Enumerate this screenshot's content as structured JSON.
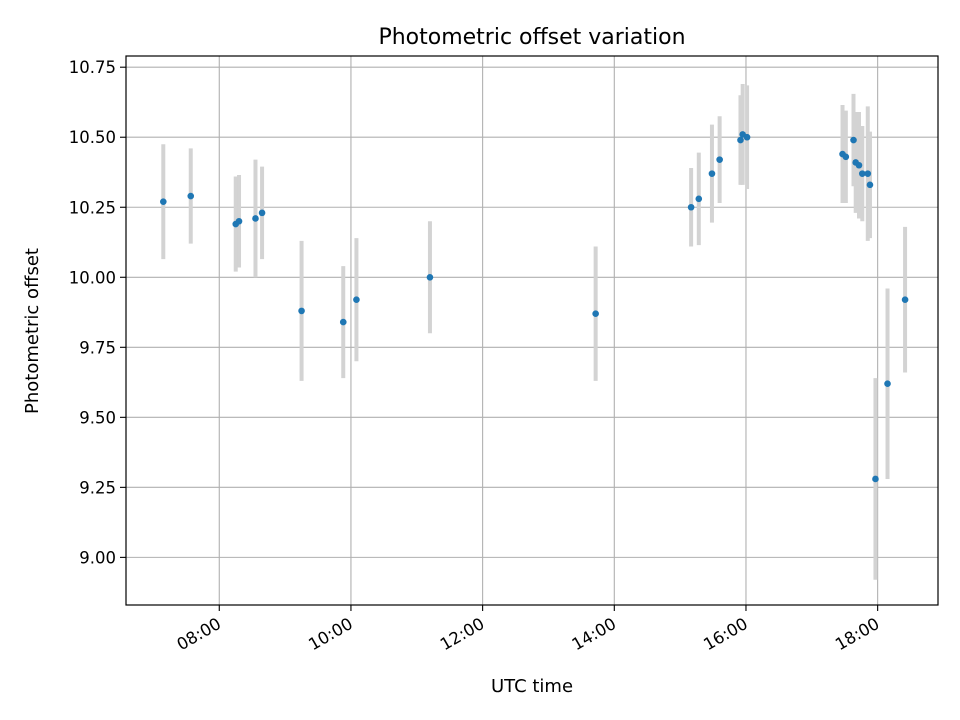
{
  "chart_data": {
    "type": "scatter",
    "title": "Photometric offset variation",
    "xlabel": "UTC time",
    "ylabel": "Photometric offset",
    "x_unit": "hours UTC",
    "xlim": [
      "06:35",
      "18:55"
    ],
    "ylim": [
      8.83,
      10.79
    ],
    "x_ticks": [
      "08:00",
      "10:00",
      "12:00",
      "14:00",
      "16:00",
      "18:00"
    ],
    "y_ticks": [
      "9.00",
      "9.25",
      "9.50",
      "9.75",
      "10.00",
      "10.25",
      "10.50",
      "10.75"
    ],
    "grid": true,
    "colors": {
      "point": "#1f77b4",
      "error_bar": "#d3d3d3",
      "grid": "#b0b0b0"
    },
    "points": [
      {
        "x": "07:09",
        "y": 10.27,
        "err": 0.205
      },
      {
        "x": "07:34",
        "y": 10.29,
        "err": 0.17
      },
      {
        "x": "08:15",
        "y": 10.19,
        "err": 0.17
      },
      {
        "x": "08:18",
        "y": 10.2,
        "err": 0.165
      },
      {
        "x": "08:33",
        "y": 10.21,
        "err": 0.21
      },
      {
        "x": "08:39",
        "y": 10.23,
        "err": 0.165
      },
      {
        "x": "09:15",
        "y": 9.88,
        "err": 0.25
      },
      {
        "x": "09:53",
        "y": 9.84,
        "err": 0.2
      },
      {
        "x": "10:05",
        "y": 9.92,
        "err": 0.22
      },
      {
        "x": "11:12",
        "y": 10.0,
        "err": 0.2
      },
      {
        "x": "13:43",
        "y": 9.87,
        "err": 0.24
      },
      {
        "x": "15:10",
        "y": 10.25,
        "err": 0.14
      },
      {
        "x": "15:17",
        "y": 10.28,
        "err": 0.165
      },
      {
        "x": "15:29",
        "y": 10.37,
        "err": 0.175
      },
      {
        "x": "15:36",
        "y": 10.42,
        "err": 0.155
      },
      {
        "x": "15:55",
        "y": 10.49,
        "err": 0.16
      },
      {
        "x": "15:57",
        "y": 10.51,
        "err": 0.18
      },
      {
        "x": "16:01",
        "y": 10.5,
        "err": 0.185
      },
      {
        "x": "17:28",
        "y": 10.44,
        "err": 0.175
      },
      {
        "x": "17:31",
        "y": 10.43,
        "err": 0.165
      },
      {
        "x": "17:38",
        "y": 10.49,
        "err": 0.165
      },
      {
        "x": "17:40",
        "y": 10.41,
        "err": 0.18
      },
      {
        "x": "17:43",
        "y": 10.4,
        "err": 0.19
      },
      {
        "x": "17:46",
        "y": 10.37,
        "err": 0.17
      },
      {
        "x": "17:51",
        "y": 10.37,
        "err": 0.24
      },
      {
        "x": "17:53",
        "y": 10.33,
        "err": 0.19
      },
      {
        "x": "17:58",
        "y": 9.28,
        "err": 0.36
      },
      {
        "x": "18:09",
        "y": 9.62,
        "err": 0.34
      },
      {
        "x": "18:25",
        "y": 9.92,
        "err": 0.26
      }
    ]
  }
}
